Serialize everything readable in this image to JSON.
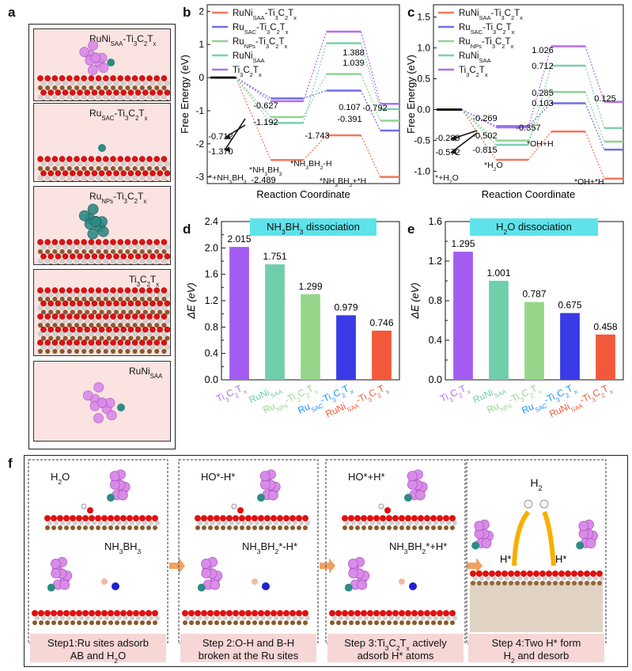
{
  "panel_letters": {
    "a": "a",
    "b": "b",
    "c": "c",
    "d": "d",
    "e": "e",
    "f": "f"
  },
  "structures": [
    {
      "label": "RuNi",
      "sub": "SAA",
      "suffix": "-Ti",
      "suffix2": "3",
      "suffix3": "C",
      "suffix4": "2",
      "suffix5": "T",
      "suffix6": "x"
    },
    {
      "label": "Ru",
      "sub": "SAC",
      "suffix": "-Ti",
      "suffix2": "3",
      "suffix3": "C",
      "suffix4": "2",
      "suffix5": "T",
      "suffix6": "x"
    },
    {
      "label": "Ru",
      "sub": "NPs",
      "suffix": "-Ti",
      "suffix2": "3",
      "suffix3": "C",
      "suffix4": "2",
      "suffix5": "T",
      "suffix6": "x"
    },
    {
      "label": "Ti",
      "sub": "3",
      "suffix": "C",
      "suffix2": "2",
      "suffix3": "T",
      "suffix4": "x",
      "suffix5": "",
      "suffix6": ""
    },
    {
      "label": "RuNi",
      "sub": "SAA",
      "suffix": "",
      "suffix2": "",
      "suffix3": "",
      "suffix4": "",
      "suffix5": "",
      "suffix6": ""
    }
  ],
  "legend": [
    {
      "main": "RuNi",
      "sub": "SAA",
      "tail": "-Ti",
      "t3": "3",
      "c": "C",
      "c2": "2",
      "t": "T",
      "x": "x",
      "color": "#f0785a"
    },
    {
      "main": "Ru",
      "sub": "SAC",
      "tail": "-Ti",
      "t3": "3",
      "c": "C",
      "c2": "2",
      "t": "T",
      "x": "x",
      "color": "#6f6fe8"
    },
    {
      "main": "Ru",
      "sub": "NPs",
      "tail": "-Ti",
      "t3": "3",
      "c": "C",
      "c2": "2",
      "t": "T",
      "x": "x",
      "color": "#8fd48f"
    },
    {
      "main": "RuNi",
      "sub": "SAA",
      "tail": "",
      "t3": "",
      "c": "",
      "c2": "",
      "t": "",
      "x": "",
      "color": "#7ccfb0"
    },
    {
      "main": "Ti",
      "sub": "3",
      "tail": "C",
      "t3": "2",
      "c": "T",
      "c2": "x",
      "t": "",
      "x": "",
      "color": "#b56cf0"
    }
  ],
  "chart_data": [
    {
      "type": "line",
      "panel": "b",
      "xlabel": "Reaction Coordinate",
      "ylabel": "Free Energy (eV)",
      "ylim": [
        -3.2,
        2.2
      ],
      "yticks": [
        "2",
        "1",
        "0",
        "-1",
        "-2",
        "-3"
      ],
      "states": [
        "*+NH3BH3",
        "*NH3BH3",
        "*NH3BH2-H",
        "*NH3BH2+*H"
      ],
      "state_labels": {
        "s0": "*+NH",
        "s0_sub": "3",
        "s0_b": "BH",
        "s0_sub2": "3",
        "s1": "*NH",
        "s1_sub": "3",
        "s1_b": "BH",
        "s1_sub2": "3",
        "s2": "*NH",
        "s2_sub": "3",
        "s2_b": "BH",
        "s2_sub2": "2",
        "s2_tail": "-H",
        "s3": "*NH",
        "s3_sub": "3",
        "s3_b": "BH",
        "s3_sub2": "2",
        "s3_tail": "+*H"
      },
      "series": [
        {
          "name": "RuNiSAA-Ti3C2Tx",
          "color": "#f0785a",
          "values": [
            0,
            -2.489,
            -1.743,
            -3.0
          ]
        },
        {
          "name": "RuSAC-Ti3C2Tx",
          "color": "#6f6fe8",
          "values": [
            0,
            -0.627,
            -0.391,
            -1.6
          ]
        },
        {
          "name": "RuNPs-Ti3C2Tx",
          "color": "#8fd48f",
          "values": [
            0,
            -1.192,
            0.107,
            -1.3
          ]
        },
        {
          "name": "RuNiSAA",
          "color": "#7ccfb0",
          "values": [
            0,
            -1.37,
            1.039,
            -0.95
          ]
        },
        {
          "name": "Ti3C2Tx",
          "color": "#b56cf0",
          "values": [
            0,
            -0.712,
            1.388,
            -0.792
          ]
        }
      ],
      "annotations": [
        "1.388",
        "1.039",
        "0.107",
        "-0.391",
        "-0.627",
        "-1.192",
        "-0.712",
        "-1.370",
        "-2.489",
        "-1.743",
        "-0.792"
      ]
    },
    {
      "type": "line",
      "panel": "c",
      "xlabel": "Reaction Coordinate",
      "ylabel": "Free Energy (eV)",
      "ylim": [
        -1.2,
        1.7
      ],
      "yticks": [
        "1.5",
        "1.0",
        "0.5",
        "0.0",
        "-0.5",
        "-1.0"
      ],
      "states": [
        "*+H2O",
        "*H2O",
        "*OH+H",
        "*OH+*H"
      ],
      "state_labels": {
        "s0": "*+H",
        "s0_sub": "2",
        "s0_b": "O",
        "s1": "*H",
        "s1_sub": "2",
        "s1_b": "O",
        "s2": "*OH+H",
        "s3": "*OH+*H"
      },
      "series": [
        {
          "name": "RuNiSAA-Ti3C2Tx",
          "color": "#f0785a",
          "values": [
            0,
            -0.815,
            -0.357,
            -1.12
          ]
        },
        {
          "name": "RuSAC-Ti3C2Tx",
          "color": "#6f6fe8",
          "values": [
            0,
            -0.269,
            0.103,
            -0.65
          ]
        },
        {
          "name": "RuNPs-Ti3C2Tx",
          "color": "#8fd48f",
          "values": [
            0,
            -0.502,
            0.285,
            -0.52
          ]
        },
        {
          "name": "RuNiSAA",
          "color": "#7ccfb0",
          "values": [
            0,
            -0.572,
            0.712,
            -0.3
          ]
        },
        {
          "name": "Ti3C2Tx",
          "color": "#b56cf0",
          "values": [
            0,
            -0.289,
            1.026,
            0.125
          ]
        }
      ],
      "annotations": [
        "1.026",
        "0.712",
        "0.285",
        "0.103",
        "-0.269",
        "-0.502",
        "-0.815",
        "-0.357",
        "-0.289",
        "-0.572",
        "0.125"
      ]
    },
    {
      "type": "bar",
      "panel": "d",
      "title": "NH3BH3 dissociation",
      "title_parts": {
        "a": "NH",
        "b": "3",
        "c": "BH",
        "d": "3",
        "e": " dissociation"
      },
      "ylabel": "ΔE (eV)",
      "ylim": [
        0,
        2.4
      ],
      "yticks": [
        "0.0",
        "0.2",
        "0.4",
        "0.6",
        "0.8",
        "1.0",
        "1.2",
        "1.4",
        "1.6",
        "1.8",
        "2.0",
        "2.2",
        "2.4"
      ],
      "categories": [
        "Ti3C2Tx",
        "RuNiSAA",
        "RuNPs-Ti3C2Tx",
        "RuSAC-Ti3C2Tx",
        "RuNiSAA-Ti3C2Tx"
      ],
      "values": [
        2.015,
        1.751,
        1.299,
        0.979,
        0.746
      ],
      "value_labels": [
        "2.015",
        "1.751",
        "1.299",
        "0.979",
        "0.746"
      ],
      "colors": [
        "#a45cf0",
        "#6fcfaa",
        "#96d68a",
        "#3a3ae6",
        "#f2593a"
      ]
    },
    {
      "type": "bar",
      "panel": "e",
      "title": "H2O dissociation",
      "title_parts": {
        "a": "H",
        "b": "2",
        "c": "O dissociation"
      },
      "ylabel": "ΔE (eV)",
      "ylim": [
        0,
        1.6
      ],
      "yticks": [
        "0.0",
        "0.2",
        "0.4",
        "0.6",
        "0.8",
        "1.0",
        "1.2",
        "1.4",
        "1.6"
      ],
      "categories": [
        "Ti3C2Tx",
        "RuNiSAA",
        "RuNPs-Ti3C2Tx",
        "RuSAC-Ti3C2Tx",
        "RuNiSAA-Ti3C2Tx"
      ],
      "values": [
        1.295,
        1.001,
        0.787,
        0.675,
        0.458
      ],
      "value_labels": [
        "1.295",
        "1.001",
        "0.787",
        "0.675",
        "0.458"
      ],
      "colors": [
        "#a45cf0",
        "#6fcfaa",
        "#96d68a",
        "#3a3ae6",
        "#f2593a"
      ]
    }
  ],
  "xcat_labels": [
    {
      "parts": [
        [
          "Ti",
          ""
        ],
        [
          "3",
          "sub"
        ],
        [
          "C",
          ""
        ],
        [
          "2",
          "sub"
        ],
        [
          "T",
          ""
        ],
        [
          "x",
          "sub"
        ]
      ],
      "color": "#b56cf0"
    },
    {
      "parts": [
        [
          "RuNi",
          ""
        ],
        [
          "SAA",
          "sub"
        ]
      ],
      "color": "#6fcfaa"
    },
    {
      "parts": [
        [
          "Ru",
          ""
        ],
        [
          "NPs",
          "sub"
        ],
        [
          "-Ti",
          ""
        ],
        [
          "3",
          "sub"
        ],
        [
          "C",
          ""
        ],
        [
          "2",
          "sub"
        ],
        [
          "T",
          ""
        ],
        [
          "x",
          "sub"
        ]
      ],
      "color": "#96d68a"
    },
    {
      "parts": [
        [
          "Ru",
          ""
        ],
        [
          "SAC",
          "sub"
        ],
        [
          "-Ti",
          ""
        ],
        [
          "3",
          "sub"
        ],
        [
          "C",
          ""
        ],
        [
          "2",
          "sub"
        ],
        [
          "T",
          ""
        ],
        [
          "x",
          "sub"
        ]
      ],
      "color": "#1e90ff"
    },
    {
      "parts": [
        [
          "RuNi",
          ""
        ],
        [
          "SAA",
          "sub"
        ],
        [
          "-Ti",
          ""
        ],
        [
          "3",
          "sub"
        ],
        [
          "C",
          ""
        ],
        [
          "2",
          "sub"
        ],
        [
          "T",
          ""
        ],
        [
          "x",
          "sub"
        ]
      ],
      "color": "#f2593a"
    }
  ],
  "steps": [
    {
      "label_top": "H",
      "label_top_sub": "2",
      "label_top_tail": "O",
      "label_bot": "NH",
      "label_bot_sub": "3",
      "label_bot_b": "BH",
      "label_bot_sub2": "3",
      "label_bot_tail": "",
      "caption1": "Step1:Ru sites adsorb",
      "caption2": "AB and H",
      "caption2_sub": "2",
      "caption2_tail": "O"
    },
    {
      "label_top": "HO*-H*",
      "label_bot": "NH",
      "label_bot_sub": "3",
      "label_bot_b": "BH",
      "label_bot_sub2": "2",
      "label_bot_tail": "*-H*",
      "caption1": "Step 2:O-H and B-H",
      "caption2": "broken at the Ru sites"
    },
    {
      "label_top": "HO*+H*",
      "label_bot": "NH",
      "label_bot_sub": "3",
      "label_bot_b": "BH",
      "label_bot_sub2": "2",
      "label_bot_tail": "*+H*",
      "caption1": "Step 3:Ti",
      "caption1_sub": "3",
      "caption1_c": "C",
      "caption1_sub2": "2",
      "caption1_t": "T",
      "caption1_sub3": "x",
      "caption1_tail": " actively",
      "caption2": "adsorb H* atoms"
    },
    {
      "h2": "H",
      "h2_sub": "2",
      "hstar1": "H*",
      "hstar2": "H*",
      "caption1": "Step 4:Two H*  form",
      "caption2": "H",
      "caption2_sub": "2",
      "caption2_tail": " and desorb"
    }
  ]
}
